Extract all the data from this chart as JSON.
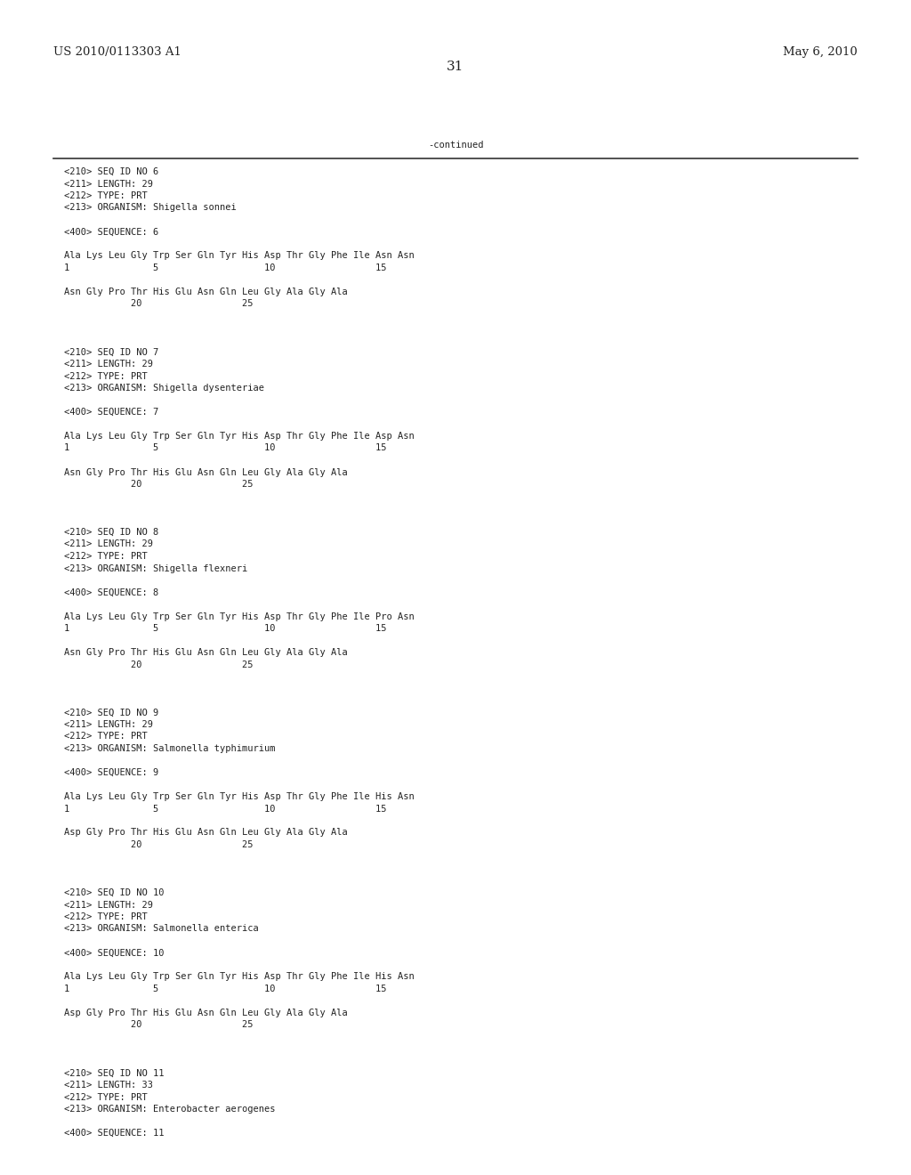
{
  "bg_color": "#ffffff",
  "header_left": "US 2010/0113303 A1",
  "header_right": "May 6, 2010",
  "page_number": "31",
  "continued_label": "-continued",
  "font_size_header": 9.5,
  "font_size_body": 7.5,
  "font_size_page": 11,
  "monospace_font": "DejaVu Sans Mono",
  "serif_font": "DejaVu Serif",
  "content_lines": [
    "<210> SEQ ID NO 6",
    "<211> LENGTH: 29",
    "<212> TYPE: PRT",
    "<213> ORGANISM: Shigella sonnei",
    "",
    "<400> SEQUENCE: 6",
    "",
    "Ala Lys Leu Gly Trp Ser Gln Tyr His Asp Thr Gly Phe Ile Asn Asn",
    "1               5                   10                  15",
    "",
    "Asn Gly Pro Thr His Glu Asn Gln Leu Gly Ala Gly Ala",
    "            20                  25",
    "",
    "",
    "",
    "<210> SEQ ID NO 7",
    "<211> LENGTH: 29",
    "<212> TYPE: PRT",
    "<213> ORGANISM: Shigella dysenteriae",
    "",
    "<400> SEQUENCE: 7",
    "",
    "Ala Lys Leu Gly Trp Ser Gln Tyr His Asp Thr Gly Phe Ile Asp Asn",
    "1               5                   10                  15",
    "",
    "Asn Gly Pro Thr His Glu Asn Gln Leu Gly Ala Gly Ala",
    "            20                  25",
    "",
    "",
    "",
    "<210> SEQ ID NO 8",
    "<211> LENGTH: 29",
    "<212> TYPE: PRT",
    "<213> ORGANISM: Shigella flexneri",
    "",
    "<400> SEQUENCE: 8",
    "",
    "Ala Lys Leu Gly Trp Ser Gln Tyr His Asp Thr Gly Phe Ile Pro Asn",
    "1               5                   10                  15",
    "",
    "Asn Gly Pro Thr His Glu Asn Gln Leu Gly Ala Gly Ala",
    "            20                  25",
    "",
    "",
    "",
    "<210> SEQ ID NO 9",
    "<211> LENGTH: 29",
    "<212> TYPE: PRT",
    "<213> ORGANISM: Salmonella typhimurium",
    "",
    "<400> SEQUENCE: 9",
    "",
    "Ala Lys Leu Gly Trp Ser Gln Tyr His Asp Thr Gly Phe Ile His Asn",
    "1               5                   10                  15",
    "",
    "Asp Gly Pro Thr His Glu Asn Gln Leu Gly Ala Gly Ala",
    "            20                  25",
    "",
    "",
    "",
    "<210> SEQ ID NO 10",
    "<211> LENGTH: 29",
    "<212> TYPE: PRT",
    "<213> ORGANISM: Salmonella enterica",
    "",
    "<400> SEQUENCE: 10",
    "",
    "Ala Lys Leu Gly Trp Ser Gln Tyr His Asp Thr Gly Phe Ile His Asn",
    "1               5                   10                  15",
    "",
    "Asp Gly Pro Thr His Glu Asn Gln Leu Gly Ala Gly Ala",
    "            20                  25",
    "",
    "",
    "",
    "<210> SEQ ID NO 11",
    "<211> LENGTH: 33",
    "<212> TYPE: PRT",
    "<213> ORGANISM: Enterobacter aerogenes",
    "",
    "<400> SEQUENCE: 11"
  ]
}
